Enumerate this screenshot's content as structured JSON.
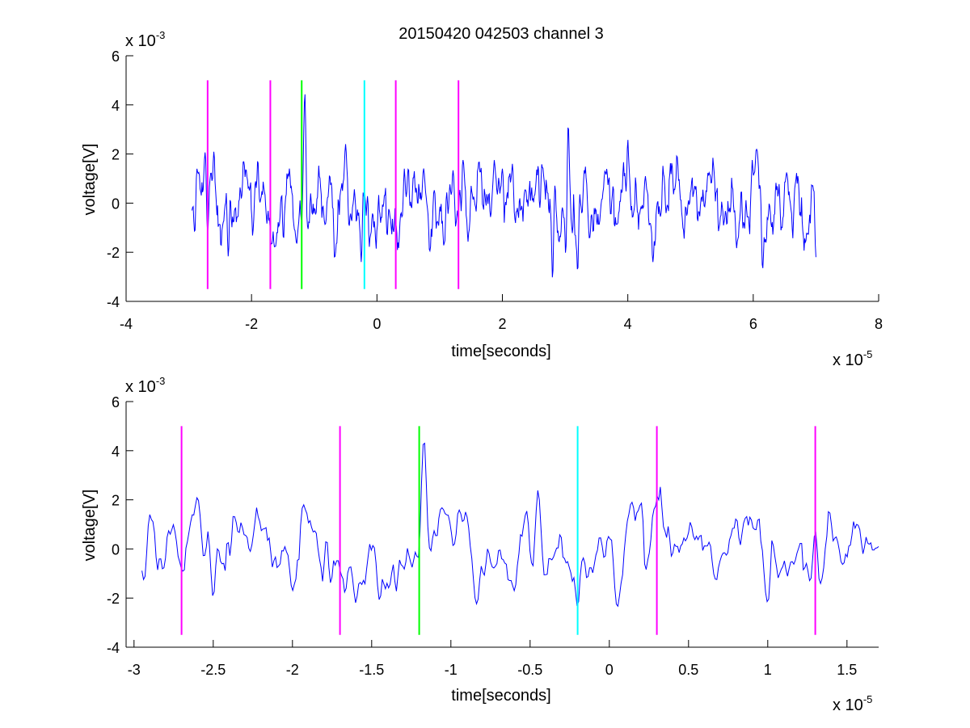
{
  "chart_data": [
    {
      "type": "line",
      "title": "20150420 042503 channel 3",
      "xlabel": "time[seconds]",
      "ylabel": "voltage[V]",
      "xlim": [
        -4e-05,
        8e-05
      ],
      "ylim": [
        -0.004,
        0.006
      ],
      "x_ticks": [
        -4e-05,
        -2e-05,
        0,
        2e-05,
        4e-05,
        6e-05,
        8e-05
      ],
      "x_tick_labels": [
        "-4",
        "-2",
        "0",
        "2",
        "4",
        "6",
        "8"
      ],
      "y_ticks": [
        -0.004,
        -0.002,
        0,
        0.002,
        0.004,
        0.006
      ],
      "y_tick_labels": [
        "-4",
        "-2",
        "0",
        "2",
        "4",
        "6"
      ],
      "x_exponent": "x 10",
      "x_exponent_power": "-5",
      "y_exponent": "x 10",
      "y_exponent_power": "-3",
      "grid": false,
      "signal": {
        "color": "#0000ff",
        "x_start": -2.95e-05,
        "x_end": 7e-05,
        "num_points": 1000,
        "y_range": [
          -0.0031,
          0.0045
        ],
        "description_values": [
          [
            -2.95e-05,
            -0.0003
          ],
          [
            -2.9e-05,
            -0.0016
          ],
          [
            -2.87e-05,
            0.0014
          ],
          [
            -2.7e-05,
            -0.0012
          ],
          [
            -2.6e-05,
            0.0021
          ],
          [
            -2.37e-05,
            -0.0022
          ],
          [
            -1.9e-05,
            0.0018
          ],
          [
            -1.63e-05,
            -0.0018
          ],
          [
            -1.2e-05,
            -0.0008
          ],
          [
            -1.15e-05,
            0.0045
          ],
          [
            -5e-06,
            0.0024
          ],
          [
            -2.5e-06,
            -0.0024
          ],
          [
            4e-06,
            -0.0006
          ],
          [
            2e-05,
            0.0014
          ],
          [
            2.8e-05,
            -0.0031
          ],
          [
            3.05e-05,
            0.0032
          ],
          [
            3.2e-05,
            -0.0028
          ],
          [
            4e-05,
            0.0026
          ],
          [
            4.4e-05,
            -0.0024
          ],
          [
            6.05e-05,
            0.0022
          ],
          [
            6.15e-05,
            -0.0027
          ],
          [
            7e-05,
            -0.0022
          ]
        ]
      },
      "markers": [
        {
          "x": -2.7e-05,
          "color": "#ff00ff",
          "y_from": -0.0035,
          "y_to": 0.005
        },
        {
          "x": -1.7e-05,
          "color": "#ff00ff",
          "y_from": -0.0035,
          "y_to": 0.005
        },
        {
          "x": -1.2e-05,
          "color": "#00ff00",
          "y_from": -0.0035,
          "y_to": 0.005
        },
        {
          "x": -2e-06,
          "color": "#00ffff",
          "y_from": -0.0035,
          "y_to": 0.005
        },
        {
          "x": 3e-06,
          "color": "#ff00ff",
          "y_from": -0.0035,
          "y_to": 0.005
        },
        {
          "x": 1.3e-05,
          "color": "#ff00ff",
          "y_from": -0.0035,
          "y_to": 0.005
        }
      ]
    },
    {
      "type": "line",
      "title": "",
      "xlabel": "time[seconds]",
      "ylabel": "voltage[V]",
      "xlim": [
        -3.05e-05,
        1.7e-05
      ],
      "ylim": [
        -0.004,
        0.006
      ],
      "x_ticks": [
        -3e-05,
        -2.5e-05,
        -2e-05,
        -1.5e-05,
        -1e-05,
        -5e-06,
        0,
        5e-06,
        1e-05,
        1.5e-05
      ],
      "x_tick_labels": [
        "-3",
        "-2.5",
        "-2",
        "-1.5",
        "-1",
        "-0.5",
        "0",
        "0.5",
        "1",
        "1.5"
      ],
      "y_ticks": [
        -0.004,
        -0.002,
        0,
        0.002,
        0.004,
        0.006
      ],
      "y_tick_labels": [
        "-4",
        "-2",
        "0",
        "2",
        "4",
        "6"
      ],
      "x_exponent": "x 10",
      "x_exponent_power": "-5",
      "y_exponent": "x 10",
      "y_exponent_power": "-3",
      "grid": false,
      "signal": {
        "color": "#0000ff",
        "x_start": -2.95e-05,
        "x_end": 1.7e-05,
        "num_points": 470,
        "y_range": [
          -0.0024,
          0.0045
        ],
        "description_values": [
          [
            -2.95e-05,
            -0.0003
          ],
          [
            -2.93e-05,
            -0.0016
          ],
          [
            -2.9e-05,
            0.0014
          ],
          [
            -2.6e-05,
            0.0021
          ],
          [
            -2.5e-05,
            -0.002
          ],
          [
            -2e-05,
            -0.0017
          ],
          [
            -1.93e-05,
            0.0018
          ],
          [
            -1.6e-05,
            -0.0022
          ],
          [
            -1.45e-05,
            -0.0021
          ],
          [
            -1.2e-05,
            -0.0009
          ],
          [
            -1.17e-05,
            0.0045
          ],
          [
            -9.5e-06,
            0.0016
          ],
          [
            -6e-06,
            -0.0017
          ],
          [
            -4.5e-06,
            0.0024
          ],
          [
            -2e-06,
            -0.0024
          ],
          [
            5e-07,
            -0.0024
          ],
          [
            2e-06,
            0.0019
          ],
          [
            1e-05,
            -0.0022
          ],
          [
            1.3e-05,
            0.0007
          ],
          [
            1.7e-05,
            0.0001
          ]
        ]
      },
      "markers": [
        {
          "x": -2.7e-05,
          "color": "#ff00ff",
          "y_from": -0.0035,
          "y_to": 0.005
        },
        {
          "x": -1.7e-05,
          "color": "#ff00ff",
          "y_from": -0.0035,
          "y_to": 0.005
        },
        {
          "x": -1.2e-05,
          "color": "#00ff00",
          "y_from": -0.0035,
          "y_to": 0.005
        },
        {
          "x": -2e-06,
          "color": "#00ffff",
          "y_from": -0.0035,
          "y_to": 0.005
        },
        {
          "x": 3e-06,
          "color": "#ff00ff",
          "y_from": -0.0035,
          "y_to": 0.005
        },
        {
          "x": 1.3e-05,
          "color": "#ff00ff",
          "y_from": -0.0035,
          "y_to": 0.005
        }
      ]
    }
  ]
}
